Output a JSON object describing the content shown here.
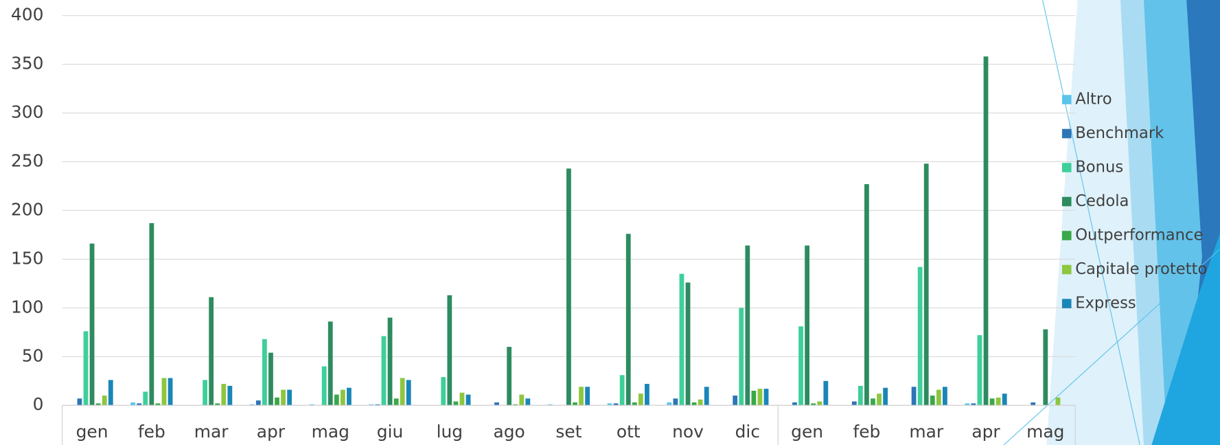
{
  "chart_data": {
    "type": "bar",
    "categories": [
      "gen",
      "feb",
      "mar",
      "apr",
      "mag",
      "giu",
      "lug",
      "ago",
      "set",
      "ott",
      "nov",
      "dic",
      "gen",
      "feb",
      "mar",
      "apr",
      "mag"
    ],
    "series": [
      {
        "name": "Altro",
        "color": "#5bc4ea",
        "values": [
          0,
          3,
          0,
          1,
          1,
          1,
          0,
          0,
          1,
          2,
          3,
          0,
          0,
          0,
          0,
          2,
          0
        ]
      },
      {
        "name": "Benchmark",
        "color": "#2e75b6",
        "values": [
          7,
          2,
          0,
          5,
          0,
          1,
          0,
          3,
          0,
          2,
          7,
          10,
          3,
          4,
          19,
          2,
          3
        ]
      },
      {
        "name": "Bonus",
        "color": "#3ecf9a",
        "values": [
          76,
          14,
          26,
          68,
          40,
          71,
          29,
          0,
          0,
          31,
          135,
          100,
          81,
          20,
          142,
          72,
          0
        ]
      },
      {
        "name": "Cedola",
        "color": "#2e8b60",
        "values": [
          166,
          187,
          111,
          54,
          86,
          90,
          113,
          60,
          243,
          176,
          126,
          164,
          164,
          227,
          248,
          358,
          78
        ]
      },
      {
        "name": "Outperformance",
        "color": "#3aa849",
        "values": [
          2,
          2,
          2,
          8,
          11,
          7,
          4,
          1,
          3,
          3,
          3,
          15,
          2,
          7,
          10,
          7,
          0
        ]
      },
      {
        "name": "Capitale protetto",
        "color": "#8dc63f",
        "values": [
          10,
          28,
          22,
          16,
          16,
          28,
          13,
          11,
          19,
          12,
          6,
          17,
          4,
          12,
          16,
          8,
          8
        ]
      },
      {
        "name": "Express",
        "color": "#1a86b8",
        "values": [
          26,
          28,
          20,
          16,
          18,
          26,
          11,
          7,
          19,
          22,
          19,
          17,
          25,
          18,
          19,
          12,
          0
        ]
      }
    ],
    "ylim": [
      0,
      400
    ],
    "yticks": [
      0,
      50,
      100,
      150,
      200,
      250,
      300,
      350,
      400
    ],
    "grid": true
  }
}
